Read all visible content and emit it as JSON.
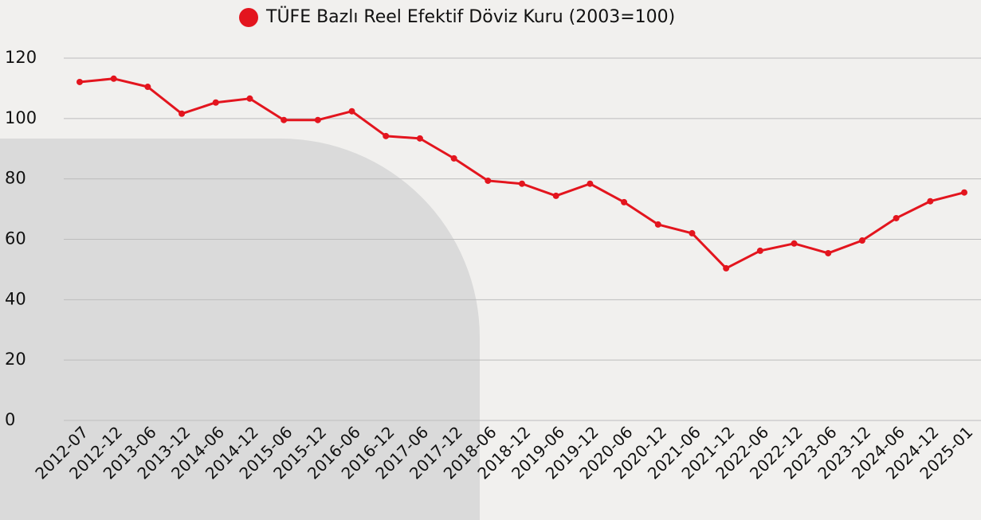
{
  "chart_data": {
    "type": "line",
    "x": [
      "2012-07",
      "2012-12",
      "2013-06",
      "2013-12",
      "2014-06",
      "2014-12",
      "2015-06",
      "2015-12",
      "2016-06",
      "2016-12",
      "2017-06",
      "2017-12",
      "2018-06",
      "2018-12",
      "2019-06",
      "2019-12",
      "2020-06",
      "2020-12",
      "2021-06",
      "2021-12",
      "2022-06",
      "2022-12",
      "2023-06",
      "2023-12",
      "2024-06",
      "2024-12",
      "2025-01"
    ],
    "series": [
      {
        "name": "TÜFE Bazlı Reel Efektif Döviz Kuru (2003=100)",
        "color": "#e3151e",
        "values": [
          112.1,
          113.2,
          110.5,
          101.6,
          105.3,
          106.6,
          99.5,
          99.5,
          102.4,
          94.2,
          93.4,
          86.8,
          79.4,
          78.4,
          74.4,
          78.4,
          72.3,
          64.9,
          62.0,
          50.4,
          56.2,
          58.6,
          55.4,
          59.6,
          67.0,
          72.6,
          75.5
        ]
      }
    ],
    "ylim": [
      0,
      120
    ],
    "yticks": [
      0,
      20,
      40,
      60,
      80,
      100,
      120
    ],
    "grid": true,
    "legend": "top"
  }
}
